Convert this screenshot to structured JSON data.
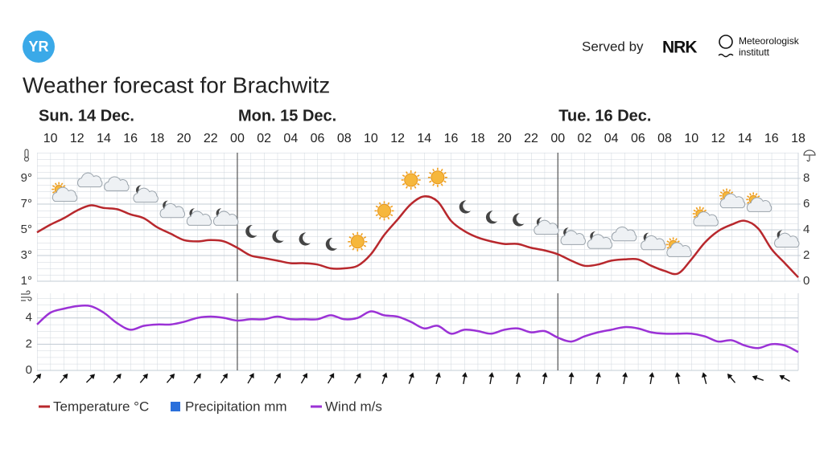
{
  "header": {
    "logo": "YR",
    "served_by": "Served by",
    "nrk": "NRK",
    "met": [
      "Meteorologisk",
      "institutt"
    ]
  },
  "chart_data": [
    {
      "type": "line",
      "title": "Weather forecast for Brachwitz",
      "days": [
        "Sun. 14 Dec.",
        "Mon. 15 Dec.",
        "Tue. 16 Dec."
      ],
      "categories": [
        null,
        "10",
        null,
        "12",
        null,
        "14",
        null,
        "16",
        null,
        "18",
        null,
        "20",
        null,
        "22",
        null,
        "00",
        null,
        "02",
        null,
        "04",
        null,
        "06",
        null,
        "08",
        null,
        "10",
        null,
        "12",
        null,
        "14",
        null,
        "16",
        null,
        "18",
        null,
        "20",
        null,
        "22",
        null,
        "00",
        null,
        "02",
        null,
        "04",
        null,
        "06",
        null,
        "08",
        null,
        "10",
        null,
        "12",
        null,
        "14",
        null,
        "16",
        null,
        "18"
      ],
      "ylim": [
        1,
        11
      ],
      "yticks": [
        {
          "value": 1,
          "label": "1°"
        },
        {
          "value": 3,
          "label": "3°"
        },
        {
          "value": 5,
          "label": "5°"
        },
        {
          "value": 7,
          "label": "7°"
        },
        {
          "value": 9,
          "label": "9°"
        }
      ],
      "y2lim": [
        0,
        10
      ],
      "y2ticks": [
        0,
        2,
        4,
        6,
        8
      ],
      "grid": true,
      "series": [
        {
          "name": "Temperature °C",
          "color": "#b8282d",
          "values": [
            4.8,
            5.4,
            5.9,
            6.5,
            6.9,
            6.7,
            6.6,
            6.2,
            5.9,
            5.2,
            4.7,
            4.2,
            4.1,
            4.2,
            4.1,
            3.6,
            3.0,
            2.8,
            2.6,
            2.4,
            2.4,
            2.3,
            2.0,
            2.0,
            2.2,
            3.1,
            4.6,
            5.8,
            7.0,
            7.6,
            7.2,
            5.7,
            4.9,
            4.4,
            4.1,
            3.9,
            3.9,
            3.6,
            3.4,
            3.1,
            2.6,
            2.2,
            2.3,
            2.6,
            2.7,
            2.7,
            2.2,
            1.8,
            1.6,
            2.7,
            4.0,
            4.9,
            5.4,
            5.7,
            5.1,
            3.5,
            2.4,
            1.3
          ]
        },
        {
          "name": "Precipitation mm",
          "color": "#2a6fdb",
          "type": "bar",
          "axis": "y2",
          "values": [
            0,
            0,
            0,
            0,
            0,
            0,
            0,
            0,
            0,
            0,
            0,
            0,
            0,
            0,
            0,
            0,
            0,
            0,
            0,
            0,
            0,
            0,
            0,
            0,
            0,
            0,
            0,
            0,
            0,
            0,
            0,
            0,
            0,
            0,
            0,
            0,
            0,
            0,
            0,
            0,
            0,
            0,
            0,
            0,
            0,
            0,
            0,
            0,
            0,
            0,
            0,
            0,
            0,
            0,
            0,
            0,
            0,
            0
          ]
        }
      ],
      "symbols": [
        "partly-day",
        "cloudy",
        "cloudy",
        "partly-night",
        "partly-night",
        "partly-night",
        "partly-night",
        "night",
        "night",
        "night",
        "night",
        "sun",
        "sun",
        "sun",
        "sun",
        "night",
        "night",
        "night",
        "partly-night",
        "partly-night",
        "partly-night",
        "cloudy",
        "partly-night",
        "partly-day",
        "partly-day",
        "partly-day",
        "partly-day",
        "partly-night"
      ]
    },
    {
      "type": "line",
      "ylim": [
        0,
        6
      ],
      "yticks": [
        0,
        2,
        4
      ],
      "grid": true,
      "series": [
        {
          "name": "Wind m/s",
          "color": "#9b32d6",
          "values": [
            3.5,
            4.4,
            4.7,
            4.9,
            4.9,
            4.4,
            3.6,
            3.1,
            3.4,
            3.5,
            3.5,
            3.7,
            4.0,
            4.1,
            4.0,
            3.8,
            3.9,
            3.9,
            4.1,
            3.9,
            3.9,
            3.9,
            4.2,
            3.9,
            4.0,
            4.5,
            4.2,
            4.1,
            3.7,
            3.2,
            3.4,
            2.8,
            3.1,
            3.0,
            2.8,
            3.1,
            3.2,
            2.9,
            3.0,
            2.5,
            2.2,
            2.6,
            2.9,
            3.1,
            3.3,
            3.2,
            2.9,
            2.8,
            2.8,
            2.8,
            2.6,
            2.2,
            2.3,
            1.9,
            1.7,
            2.0,
            1.9,
            1.4
          ]
        }
      ],
      "wind_direction": [
        40,
        40,
        45,
        40,
        40,
        40,
        35,
        35,
        30,
        30,
        30,
        30,
        30,
        20,
        20,
        15,
        10,
        10,
        10,
        10,
        5,
        10,
        10,
        10,
        -10,
        -15,
        -40,
        -70,
        -60
      ]
    }
  ]
}
